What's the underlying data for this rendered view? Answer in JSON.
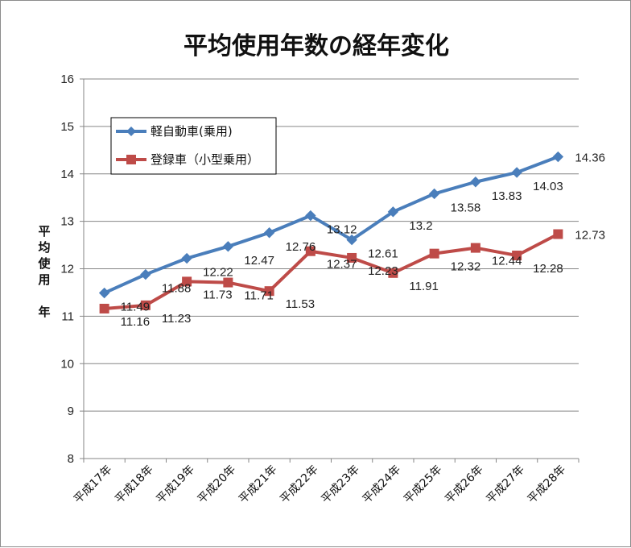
{
  "chart_data": {
    "type": "line",
    "title": "平均使用年数の経年変化",
    "ylabel": "平均使用 年",
    "ylim": [
      8,
      16
    ],
    "yticks": [
      8,
      9,
      10,
      11,
      12,
      13,
      14,
      15,
      16
    ],
    "categories": [
      "平成17年",
      "平成18年",
      "平成19年",
      "平成20年",
      "平成21年",
      "平成22年",
      "平成23年",
      "平成24年",
      "平成25年",
      "平成26年",
      "平成27年",
      "平成28年"
    ],
    "grid": true,
    "legend_position": "top-left",
    "series": [
      {
        "name": "軽自動車(乗用)",
        "color": "#4a7ebb",
        "marker": "diamond",
        "values": [
          11.49,
          11.88,
          12.22,
          12.47,
          12.76,
          13.12,
          12.61,
          13.2,
          13.58,
          13.83,
          14.03,
          14.36
        ]
      },
      {
        "name": "登録車（小型乗用）",
        "color": "#be4b48",
        "marker": "square",
        "values": [
          11.16,
          11.23,
          11.73,
          11.71,
          11.53,
          12.37,
          12.23,
          11.91,
          12.32,
          12.44,
          12.28,
          12.73
        ]
      }
    ]
  }
}
